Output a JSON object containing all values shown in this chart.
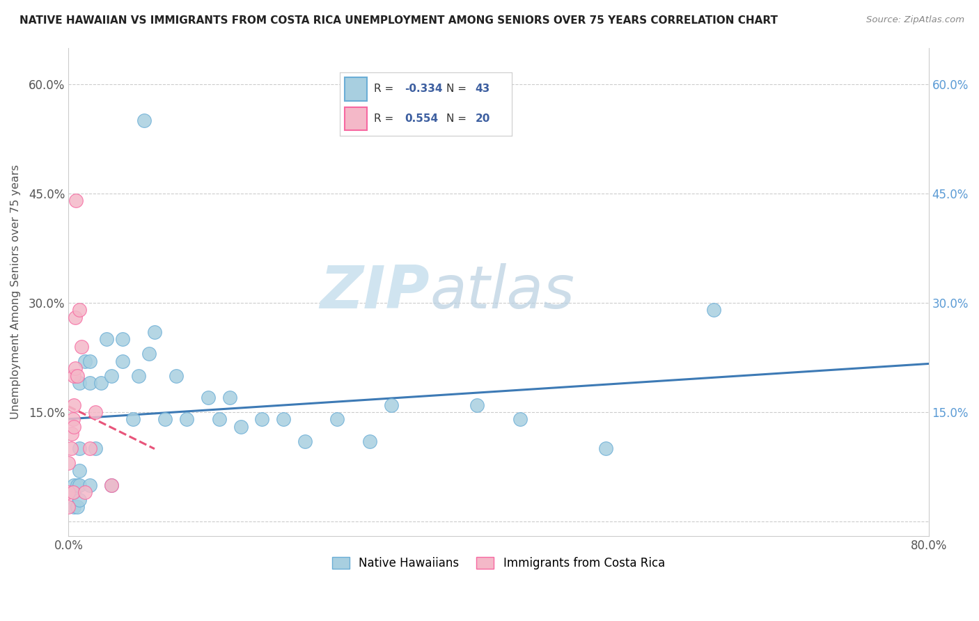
{
  "title": "NATIVE HAWAIIAN VS IMMIGRANTS FROM COSTA RICA UNEMPLOYMENT AMONG SENIORS OVER 75 YEARS CORRELATION CHART",
  "source": "Source: ZipAtlas.com",
  "ylabel": "Unemployment Among Seniors over 75 years",
  "xlim": [
    0.0,
    0.8
  ],
  "ylim": [
    -0.02,
    0.65
  ],
  "x_tick_positions": [
    0.0,
    0.8
  ],
  "x_tick_labels": [
    "0.0%",
    "80.0%"
  ],
  "y_tick_positions": [
    0.0,
    0.15,
    0.3,
    0.45,
    0.6
  ],
  "y_tick_labels": [
    "",
    "15.0%",
    "30.0%",
    "45.0%",
    "60.0%"
  ],
  "right_y_tick_positions": [
    0.15,
    0.3,
    0.45,
    0.6
  ],
  "right_y_tick_labels": [
    "15.0%",
    "30.0%",
    "45.0%",
    "60.0%"
  ],
  "legend_r1_prefix": "R = ",
  "legend_r1_val": "-0.334",
  "legend_n1_prefix": "N = ",
  "legend_n1_val": "43",
  "legend_r2_prefix": "R =  ",
  "legend_r2_val": "0.554",
  "legend_n2_prefix": "N = ",
  "legend_n2_val": "20",
  "legend_label1": "Native Hawaiians",
  "legend_label2": "Immigrants from Costa Rica",
  "color_blue": "#a8cfe0",
  "color_pink": "#f4b8c8",
  "color_blue_edge": "#6baed6",
  "color_pink_edge": "#f768a1",
  "color_blue_line": "#3d7ab5",
  "color_pink_line": "#e8547a",
  "watermark_zip": "ZIP",
  "watermark_atlas": "atlas",
  "grid_color": "#cccccc",
  "native_hawaiian_x": [
    0.005,
    0.005,
    0.005,
    0.008,
    0.008,
    0.01,
    0.01,
    0.01,
    0.01,
    0.01,
    0.015,
    0.02,
    0.02,
    0.02,
    0.025,
    0.03,
    0.035,
    0.04,
    0.04,
    0.05,
    0.05,
    0.06,
    0.065,
    0.07,
    0.075,
    0.08,
    0.09,
    0.1,
    0.11,
    0.13,
    0.14,
    0.15,
    0.16,
    0.18,
    0.2,
    0.22,
    0.25,
    0.28,
    0.3,
    0.38,
    0.42,
    0.5,
    0.6
  ],
  "native_hawaiian_y": [
    0.02,
    0.04,
    0.05,
    0.02,
    0.05,
    0.03,
    0.05,
    0.07,
    0.1,
    0.19,
    0.22,
    0.05,
    0.19,
    0.22,
    0.1,
    0.19,
    0.25,
    0.05,
    0.2,
    0.22,
    0.25,
    0.14,
    0.2,
    0.55,
    0.23,
    0.26,
    0.14,
    0.2,
    0.14,
    0.17,
    0.14,
    0.17,
    0.13,
    0.14,
    0.14,
    0.11,
    0.14,
    0.11,
    0.16,
    0.16,
    0.14,
    0.1,
    0.29
  ],
  "costa_rica_x": [
    0.0,
    0.0,
    0.0,
    0.002,
    0.003,
    0.004,
    0.004,
    0.005,
    0.005,
    0.005,
    0.006,
    0.006,
    0.007,
    0.008,
    0.01,
    0.012,
    0.015,
    0.02,
    0.025,
    0.04
  ],
  "costa_rica_y": [
    0.02,
    0.04,
    0.08,
    0.1,
    0.12,
    0.14,
    0.04,
    0.13,
    0.16,
    0.2,
    0.21,
    0.28,
    0.44,
    0.2,
    0.29,
    0.24,
    0.04,
    0.1,
    0.15,
    0.05
  ]
}
